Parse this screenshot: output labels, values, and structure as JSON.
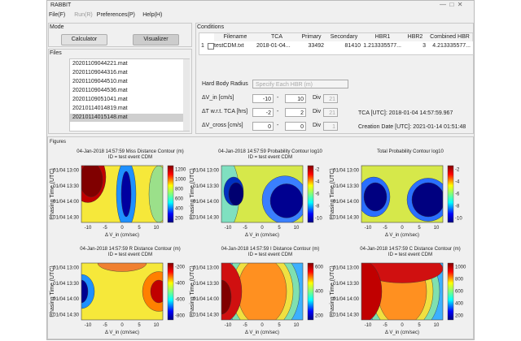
{
  "window": {
    "title": "RABBIT"
  },
  "menu": [
    "File(F)",
    "Run(R)",
    "Preferences(P)",
    "Help(H)"
  ],
  "mode": {
    "label": "Mode",
    "buttons": [
      "Calculator",
      "Visualizer"
    ]
  },
  "files": {
    "label": "Files",
    "items": [
      "20201109044221.mat",
      "20201109044316.mat",
      "20201109044510.mat",
      "20201109044536.mat",
      "20201109051041.mat",
      "20210114014819.mat",
      "20210114015148.mat"
    ]
  },
  "conditions": {
    "label": "Conditions",
    "table": {
      "headers": [
        "Filename",
        "TCA",
        "Primary",
        "Secondary",
        "HBR1",
        "HBR2",
        "Combined HBR"
      ],
      "rows": [
        [
          "1",
          "testCDM.txt",
          "2018-01-04...",
          "33492",
          "81410",
          "1.213335577...",
          "3",
          "4.213335577..."
        ]
      ]
    },
    "hbr_label": "Hard Body Radius",
    "hbr_select": "Specify Each HBR (m)",
    "ranges": [
      {
        "label": "ΔV_in [cm/s]",
        "from": "-10",
        "sep": "-",
        "to": "10",
        "div_label": "Div",
        "div": "21"
      },
      {
        "label": "ΔT w.r.t. TCA [hrs]",
        "from": "-2",
        "sep": "-",
        "to": "2",
        "div_label": "Div",
        "div": "21"
      },
      {
        "label": "ΔV_cross [cm/s]",
        "from": "0",
        "sep": "-",
        "to": "0",
        "div_label": "Div",
        "div": "1"
      }
    ],
    "info": [
      "TCA [UTC]: 2018-01-04 14:57:59.967",
      "Creation Date [UTC]: 2021-01-14 01:51:48"
    ]
  },
  "figures": {
    "label": "Figures",
    "x_label": "Δ V_in (cm/sec)",
    "y_label": "Phasing Time (UTC)",
    "x_ticks": [
      -10,
      -5,
      0,
      5,
      10
    ],
    "y_ticks": [
      "01/04 13:00",
      "01/04 13:30",
      "01/04 14:00",
      "01/04 14:30"
    ],
    "plots": [
      {
        "title": "04-Jan-2018 14:57:59 Miss Distance Contour (m)",
        "subtitle": "ID = test event CDM",
        "colorbar_ticks": [
          1200,
          1000,
          800,
          600,
          400,
          200
        ]
      },
      {
        "title": "04-Jan-2018 14:57:59 Probability Contour log10",
        "subtitle": "ID = test event CDM",
        "colorbar_ticks": [
          -2,
          -4,
          -6,
          -8,
          -10
        ]
      },
      {
        "title": "Total Probability Contour log10",
        "subtitle": "",
        "colorbar_ticks": [
          -2,
          -4,
          -6,
          -8,
          -10
        ]
      },
      {
        "title": "04-Jan-2018 14:57:59 R Distance Contour (m)",
        "subtitle": "ID = test event CDM",
        "colorbar_ticks": [
          -200,
          -400,
          -600,
          -800
        ]
      },
      {
        "title": "04-Jan-2018 14:57:59 I Distance Contour (m)",
        "subtitle": "ID = test event CDM",
        "colorbar_ticks": [
          600,
          400,
          200
        ]
      },
      {
        "title": "04-Jan-2018 14:57:59 C Distance Contour (m)",
        "subtitle": "ID = test event CDM",
        "colorbar_ticks": [
          1000,
          800,
          600,
          400,
          200
        ]
      }
    ]
  }
}
